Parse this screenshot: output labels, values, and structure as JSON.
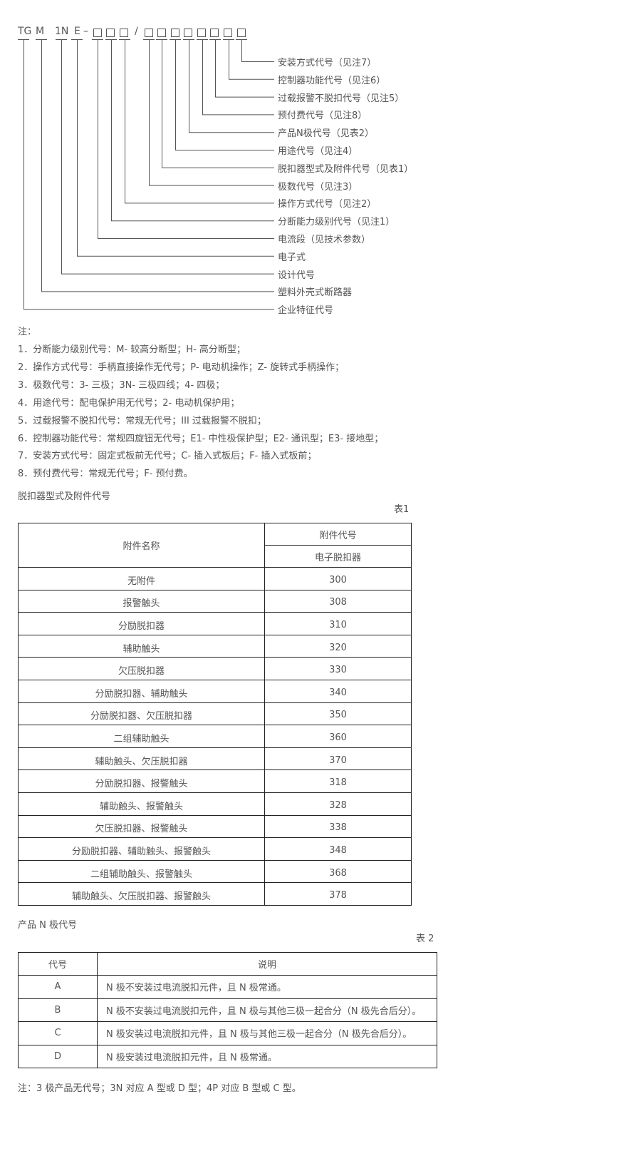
{
  "model_code": {
    "tokens": [
      "TG",
      "M",
      "1N",
      "E",
      "–",
      "□",
      "□",
      "□",
      "/",
      "□",
      "□",
      "□",
      "□",
      "□",
      "□",
      "□",
      "□"
    ],
    "labels": [
      "安装方式代号（见注7）",
      "控制器功能代号（见注6）",
      "过载报警不脱扣代号（见注5）",
      "预付费代号（见注8）",
      "产品N极代号（见表2）",
      "用途代号（见注4）",
      "脱扣器型式及附件代号（见表1）",
      "极数代号（见注3）",
      "操作方式代号（见注2）",
      "分断能力级别代号（见注1）",
      "电流段（见技术参数）",
      "电子式",
      "设计代号",
      "塑料外壳式断路器",
      "企业特征代号"
    ]
  },
  "notes": {
    "heading": "注：",
    "items": [
      "1．分断能力级别代号：M- 较高分断型；H- 高分断型；",
      "2．操作方式代号：手柄直接操作无代号；P- 电动机操作；Z- 旋转式手柄操作；",
      "3．极数代号：3- 三极；3N- 三极四线；4- 四极；",
      "4．用途代号：配电保护用无代号；2- 电动机保护用；",
      "5．过载报警不脱扣代号：常规无代号；III 过载报警不脱扣；",
      "6．控制器功能代号：常规四旋钮无代号；E1- 中性极保护型；E2- 通讯型；E3- 接地型；",
      "7．安装方式代号：固定式板前无代号；C- 插入式板后；F- 插入式板前；",
      "8．预付费代号：常规无代号；F- 预付费。"
    ]
  },
  "table1": {
    "title": "脱扣器型式及附件代号",
    "number": "表1",
    "header_name": "附件名称",
    "header_code": "附件代号",
    "header_sub": "电子脱扣器",
    "rows": [
      [
        "无附件",
        "300"
      ],
      [
        "报警触头",
        "308"
      ],
      [
        "分励脱扣器",
        "310"
      ],
      [
        "辅助触头",
        "320"
      ],
      [
        "欠压脱扣器",
        "330"
      ],
      [
        "分励脱扣器、辅助触头",
        "340"
      ],
      [
        "分励脱扣器、欠压脱扣器",
        "350"
      ],
      [
        "二组辅助触头",
        "360"
      ],
      [
        "辅助触头、欠压脱扣器",
        "370"
      ],
      [
        "分励脱扣器、报警触头",
        "318"
      ],
      [
        "辅助触头、报警触头",
        "328"
      ],
      [
        "欠压脱扣器、报警触头",
        "338"
      ],
      [
        "分励脱扣器、辅助触头、报警触头",
        "348"
      ],
      [
        "二组辅助触头、报警触头",
        "368"
      ],
      [
        "辅助触头、欠压脱扣器、报警触头",
        "378"
      ]
    ]
  },
  "table2": {
    "title": "产品 N 极代号",
    "number": "表 2",
    "header_code": "代号",
    "header_desc": "说明",
    "rows": [
      [
        "A",
        "N 极不安装过电流脱扣元件，且 N 极常通。"
      ],
      [
        "B",
        "N 极不安装过电流脱扣元件，且 N 极与其他三极一起合分（N 极先合后分）。"
      ],
      [
        "C",
        "N 极安装过电流脱扣元件，且 N 极与其他三极一起合分（N 极先合后分）。"
      ],
      [
        "D",
        "N 极安装过电流脱扣元件，且 N 极常通。"
      ]
    ]
  },
  "footnote": "注：3 极产品无代号；3N 对应 A 型或 D 型；4P 对应 B 型或 C 型。"
}
